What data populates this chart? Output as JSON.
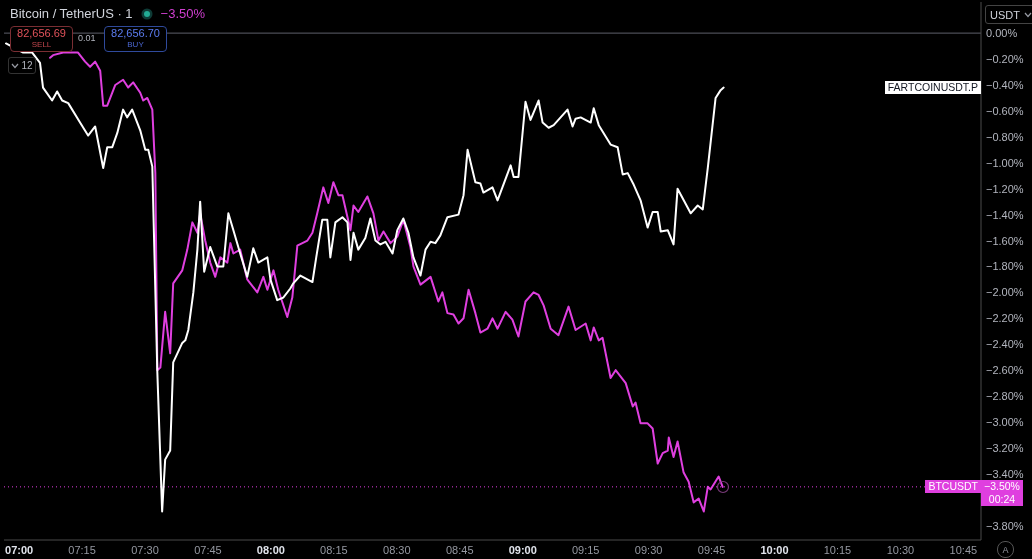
{
  "chart_data": {
    "type": "line",
    "title": "Bitcoin / TetherUS · 1",
    "marker": "none",
    "annotations": [
      "−3.50%",
      "82,656.69",
      "SELL",
      "0.01",
      "82,656.70",
      "BUY",
      "12",
      "USDT",
      "00:24",
      "A"
    ],
    "xlim": [
      6.94,
      10.82
    ],
    "xticks": [
      {
        "value": 7,
        "label": "07:00"
      },
      {
        "value": 7.25,
        "label": "07:15"
      },
      {
        "value": 7.5,
        "label": "07:30"
      },
      {
        "value": 7.75,
        "label": "07:45"
      },
      {
        "value": 8,
        "label": "08:00"
      },
      {
        "value": 8.25,
        "label": "08:15"
      },
      {
        "value": 8.5,
        "label": "08:30"
      },
      {
        "value": 8.75,
        "label": "08:45"
      },
      {
        "value": 9,
        "label": "09:00"
      },
      {
        "value": 9.25,
        "label": "09:15"
      },
      {
        "value": 9.5,
        "label": "09:30"
      },
      {
        "value": 9.75,
        "label": "09:45"
      },
      {
        "value": 10,
        "label": "10:00"
      },
      {
        "value": 10.25,
        "label": "10:15"
      },
      {
        "value": 10.5,
        "label": "10:30"
      },
      {
        "value": 10.75,
        "label": "10:45"
      }
    ],
    "ylim": [
      -3.91,
      0.24
    ],
    "yticks": [
      {
        "value": 0,
        "label": "0.00%"
      },
      {
        "value": -0.2,
        "label": "−0.20%"
      },
      {
        "value": -0.4,
        "label": "−0.40%"
      },
      {
        "value": -0.6,
        "label": "−0.60%"
      },
      {
        "value": -0.8,
        "label": "−0.80%"
      },
      {
        "value": -1,
        "label": "−1.00%"
      },
      {
        "value": -1.2,
        "label": "−1.20%"
      },
      {
        "value": -1.4,
        "label": "−1.40%"
      },
      {
        "value": -1.6,
        "label": "−1.60%"
      },
      {
        "value": -1.8,
        "label": "−1.80%"
      },
      {
        "value": -2,
        "label": "−2.00%"
      },
      {
        "value": -2.2,
        "label": "−2.20%"
      },
      {
        "value": -2.4,
        "label": "−2.40%"
      },
      {
        "value": -2.6,
        "label": "−2.60%"
      },
      {
        "value": -2.8,
        "label": "−2.80%"
      },
      {
        "value": -3,
        "label": "−3.00%"
      },
      {
        "value": -3.2,
        "label": "−3.20%"
      },
      {
        "value": -3.4,
        "label": "−3.40%"
      },
      {
        "value": -3.8,
        "label": "−3.80%"
      }
    ],
    "ref_lines": [
      {
        "axis": "y",
        "value": 0,
        "color": "#5d606b",
        "line_style": "solid"
      },
      {
        "axis": "y",
        "value": -3.5,
        "label": "−3.50%",
        "color": "#df3fdf",
        "line_style": "dotted"
      }
    ],
    "series": [
      {
        "name": "BTCUSDT",
        "color": "#df3fdf",
        "x": [
          7.123,
          7.135,
          7.175,
          7.234,
          7.262,
          7.282,
          7.302,
          7.322,
          7.334,
          7.35,
          7.382,
          7.413,
          7.433,
          7.453,
          7.481,
          7.493,
          7.509,
          7.529,
          7.541,
          7.549,
          7.561,
          7.58,
          7.6,
          7.612,
          7.648,
          7.668,
          7.688,
          7.708,
          7.719,
          7.739,
          7.759,
          7.779,
          7.799,
          7.827,
          7.839,
          7.851,
          7.878,
          7.906,
          7.918,
          7.946,
          7.97,
          7.986,
          8.01,
          8.029,
          8.065,
          8.085,
          8.105,
          8.125,
          8.145,
          8.165,
          8.184,
          8.208,
          8.228,
          8.248,
          8.268,
          8.284,
          8.316,
          8.328,
          8.347,
          8.383,
          8.407,
          8.427,
          8.447,
          8.475,
          8.502,
          8.526,
          8.554,
          8.566,
          8.594,
          8.634,
          8.665,
          8.681,
          8.701,
          8.725,
          8.745,
          8.765,
          8.785,
          8.812,
          8.832,
          8.86,
          8.88,
          8.9,
          8.932,
          8.959,
          8.983,
          9.011,
          9.043,
          9.063,
          9.083,
          9.111,
          9.142,
          9.182,
          9.21,
          9.25,
          9.27,
          9.282,
          9.302,
          9.317,
          9.349,
          9.369,
          9.409,
          9.437,
          9.448,
          9.468,
          9.496,
          9.516,
          9.536,
          9.556,
          9.576,
          9.58,
          9.599,
          9.615,
          9.639,
          9.659,
          9.679,
          9.699,
          9.719,
          9.735,
          9.746,
          9.778,
          9.794
        ],
        "values": [
          -0.19,
          -0.17,
          -0.15,
          -0.15,
          -0.22,
          -0.26,
          -0.22,
          -0.29,
          -0.56,
          -0.56,
          -0.4,
          -0.36,
          -0.42,
          -0.38,
          -0.46,
          -0.52,
          -0.5,
          -0.59,
          -1.08,
          -2.6,
          -2.58,
          -2.15,
          -2.47,
          -1.93,
          -1.83,
          -1.67,
          -1.46,
          -1.54,
          -1.39,
          -1.6,
          -1.77,
          -1.88,
          -1.73,
          -1.77,
          -1.62,
          -1.7,
          -1.67,
          -1.9,
          -1.93,
          -2.0,
          -1.88,
          -1.98,
          -1.83,
          -1.98,
          -2.19,
          -2.04,
          -1.64,
          -1.62,
          -1.6,
          -1.54,
          -1.39,
          -1.19,
          -1.31,
          -1.15,
          -1.25,
          -1.25,
          -1.52,
          -1.33,
          -1.38,
          -1.26,
          -1.39,
          -1.6,
          -1.53,
          -1.62,
          -1.57,
          -1.44,
          -1.65,
          -1.8,
          -1.94,
          -1.88,
          -2.07,
          -2.0,
          -2.16,
          -2.17,
          -2.24,
          -2.2,
          -1.98,
          -2.16,
          -2.31,
          -2.28,
          -2.2,
          -2.28,
          -2.15,
          -2.21,
          -2.34,
          -2.07,
          -2.0,
          -2.02,
          -2.1,
          -2.28,
          -2.33,
          -2.11,
          -2.29,
          -2.24,
          -2.37,
          -2.27,
          -2.37,
          -2.35,
          -2.66,
          -2.6,
          -2.7,
          -2.88,
          -2.85,
          -3.01,
          -3.01,
          -3.05,
          -3.32,
          -3.24,
          -3.22,
          -3.12,
          -3.27,
          -3.15,
          -3.39,
          -3.46,
          -3.62,
          -3.59,
          -3.69,
          -3.5,
          -3.52,
          -3.42,
          -3.5
        ]
      },
      {
        "name": "FARTCOINUSDT.P",
        "color": "#ffffff",
        "x": [
          6.948,
          7.016,
          7.052,
          7.083,
          7.095,
          7.131,
          7.151,
          7.171,
          7.195,
          7.242,
          7.274,
          7.302,
          7.334,
          7.35,
          7.37,
          7.39,
          7.413,
          7.429,
          7.449,
          7.481,
          7.501,
          7.513,
          7.529,
          7.549,
          7.568,
          7.58,
          7.6,
          7.612,
          7.648,
          7.66,
          7.672,
          7.692,
          7.708,
          7.719,
          7.735,
          7.759,
          7.787,
          7.811,
          7.831,
          7.851,
          7.878,
          7.906,
          7.93,
          7.95,
          7.986,
          7.998,
          8.025,
          8.049,
          8.077,
          8.089,
          8.117,
          8.165,
          8.18,
          8.204,
          8.224,
          8.236,
          8.256,
          8.284,
          8.304,
          8.316,
          8.328,
          8.347,
          8.375,
          8.395,
          8.415,
          8.435,
          8.455,
          8.483,
          8.502,
          8.526,
          8.546,
          8.566,
          8.594,
          8.614,
          8.634,
          8.653,
          8.673,
          8.701,
          8.745,
          8.765,
          8.781,
          8.812,
          8.832,
          8.844,
          8.88,
          8.9,
          8.952,
          8.964,
          8.983,
          9.011,
          9.031,
          9.063,
          9.079,
          9.103,
          9.123,
          9.178,
          9.198,
          9.21,
          9.23,
          9.27,
          9.282,
          9.302,
          9.349,
          9.377,
          9.397,
          9.417,
          9.441,
          9.468,
          9.496,
          9.516,
          9.536,
          9.548,
          9.576,
          9.599,
          9.615,
          9.667,
          9.695,
          9.715,
          9.735,
          9.766,
          9.786,
          9.798
        ],
        "values": [
          -0.08,
          -0.15,
          -0.15,
          -0.23,
          -0.42,
          -0.52,
          -0.45,
          -0.52,
          -0.54,
          -0.69,
          -0.79,
          -0.72,
          -1.04,
          -0.88,
          -0.88,
          -0.77,
          -0.59,
          -0.65,
          -0.59,
          -0.75,
          -0.9,
          -0.9,
          -1.03,
          -2.62,
          -3.69,
          -3.29,
          -3.22,
          -2.54,
          -2.39,
          -2.37,
          -2.29,
          -2.0,
          -1.67,
          -1.3,
          -1.84,
          -1.65,
          -1.8,
          -1.8,
          -1.39,
          -1.52,
          -1.7,
          -1.88,
          -1.66,
          -1.77,
          -1.73,
          -1.9,
          -2.06,
          -2.04,
          -1.97,
          -1.93,
          -1.87,
          -1.92,
          -1.73,
          -1.44,
          -1.44,
          -1.73,
          -1.46,
          -1.42,
          -1.46,
          -1.75,
          -1.54,
          -1.67,
          -1.58,
          -1.43,
          -1.6,
          -1.63,
          -1.61,
          -1.7,
          -1.52,
          -1.43,
          -1.54,
          -1.73,
          -1.87,
          -1.67,
          -1.61,
          -1.62,
          -1.56,
          -1.42,
          -1.4,
          -1.25,
          -0.9,
          -1.15,
          -1.16,
          -1.23,
          -1.19,
          -1.29,
          -1.02,
          -1.11,
          -1.11,
          -0.53,
          -0.67,
          -0.52,
          -0.69,
          -0.73,
          -0.71,
          -0.59,
          -0.72,
          -0.66,
          -0.65,
          -0.69,
          -0.58,
          -0.71,
          -0.86,
          -0.88,
          -1.09,
          -1.08,
          -1.17,
          -1.29,
          -1.5,
          -1.38,
          -1.38,
          -1.53,
          -1.52,
          -1.63,
          -1.2,
          -1.39,
          -1.33,
          -1.36,
          -1.04,
          -0.5,
          -0.44,
          -0.42
        ]
      }
    ]
  }
}
